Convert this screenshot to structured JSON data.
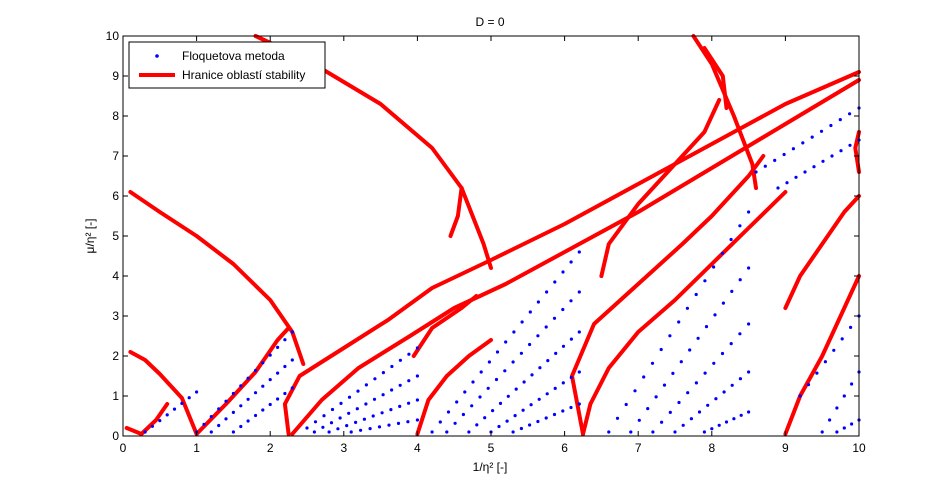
{
  "chart_data": {
    "type": "scatter",
    "title": "D = 0",
    "xlabel": "1/η² [-]",
    "ylabel": "μ/η² [-]",
    "xlim": [
      0,
      10
    ],
    "ylim": [
      0,
      10
    ],
    "xticks": [
      "0",
      "1",
      "2",
      "3",
      "4",
      "5",
      "6",
      "7",
      "8",
      "9",
      "10"
    ],
    "yticks": [
      "0",
      "1",
      "2",
      "3",
      "4",
      "5",
      "6",
      "7",
      "8",
      "9",
      "10"
    ],
    "grid": false,
    "legend_position": "top-left",
    "legend": [
      {
        "label": "Floquetova metoda",
        "marker": "point",
        "color": "#0000ff"
      },
      {
        "label": "Hranice oblastí stability",
        "marker": "thick-line",
        "color": "#ff0000"
      }
    ],
    "series": [
      {
        "name": "Hranice oblastí stability",
        "color": "#ff0000",
        "curves": [
          [
            [
              0.1,
              2.1
            ],
            [
              0.3,
              1.9
            ],
            [
              0.5,
              1.55
            ],
            [
              0.8,
              0.95
            ],
            [
              1.0,
              0.05
            ]
          ],
          [
            [
              0.05,
              0.2
            ],
            [
              0.25,
              0.05
            ],
            [
              0.45,
              0.4
            ],
            [
              0.6,
              0.8
            ]
          ],
          [
            [
              0.1,
              6.1
            ],
            [
              0.5,
              5.6
            ],
            [
              1.0,
              5.0
            ],
            [
              1.5,
              4.3
            ],
            [
              2.0,
              3.4
            ],
            [
              2.3,
              2.6
            ],
            [
              2.45,
              1.8
            ]
          ],
          [
            [
              1.0,
              0.05
            ],
            [
              1.4,
              0.8
            ],
            [
              1.8,
              1.6
            ],
            [
              2.1,
              2.4
            ],
            [
              2.25,
              2.7
            ]
          ],
          [
            [
              2.25,
              0.05
            ],
            [
              2.2,
              0.8
            ],
            [
              2.4,
              1.5
            ],
            [
              3.0,
              2.2
            ],
            [
              3.6,
              2.9
            ],
            [
              4.2,
              3.7
            ],
            [
              5.0,
              4.4
            ],
            [
              6.0,
              5.3
            ],
            [
              7.0,
              6.3
            ],
            [
              8.0,
              7.3
            ],
            [
              9.0,
              8.3
            ],
            [
              10.0,
              9.1
            ]
          ],
          [
            [
              1.8,
              10.0
            ],
            [
              2.5,
              9.4
            ],
            [
              3.5,
              8.3
            ],
            [
              4.2,
              7.2
            ],
            [
              4.6,
              6.2
            ],
            [
              4.9,
              4.8
            ],
            [
              5.0,
              4.2
            ]
          ],
          [
            [
              2.3,
              0.05
            ],
            [
              2.7,
              0.9
            ],
            [
              3.2,
              1.7
            ],
            [
              3.9,
              2.5
            ],
            [
              4.5,
              3.2
            ],
            [
              5.2,
              3.8
            ],
            [
              6.0,
              4.6
            ],
            [
              7.0,
              5.6
            ],
            [
              8.0,
              6.7
            ],
            [
              9.0,
              7.8
            ],
            [
              10.0,
              8.9
            ]
          ],
          [
            [
              4.0,
              0.05
            ],
            [
              4.15,
              0.9
            ],
            [
              4.4,
              1.5
            ],
            [
              4.7,
              2.0
            ],
            [
              5.0,
              2.4
            ]
          ],
          [
            [
              3.95,
              2.0
            ],
            [
              4.2,
              2.7
            ],
            [
              4.6,
              3.2
            ],
            [
              4.8,
              3.5
            ]
          ],
          [
            [
              4.45,
              5.0
            ],
            [
              4.55,
              5.5
            ],
            [
              4.6,
              6.2
            ]
          ],
          [
            [
              6.25,
              0.05
            ],
            [
              6.35,
              0.8
            ],
            [
              6.6,
              1.7
            ],
            [
              7.0,
              2.6
            ],
            [
              7.5,
              3.4
            ],
            [
              8.0,
              4.3
            ],
            [
              8.5,
              5.2
            ],
            [
              9.0,
              6.1
            ]
          ],
          [
            [
              6.25,
              0.05
            ],
            [
              6.1,
              1.5
            ],
            [
              6.4,
              2.8
            ],
            [
              7.0,
              3.8
            ],
            [
              7.6,
              4.8
            ],
            [
              8.0,
              5.5
            ],
            [
              8.5,
              6.5
            ],
            [
              8.7,
              7.0
            ]
          ],
          [
            [
              6.5,
              4.0
            ],
            [
              6.6,
              4.8
            ],
            [
              7.0,
              5.8
            ],
            [
              7.5,
              6.8
            ],
            [
              7.9,
              7.6
            ],
            [
              8.1,
              8.4
            ]
          ],
          [
            [
              7.75,
              10.0
            ],
            [
              8.0,
              9.3
            ],
            [
              8.3,
              8.0
            ],
            [
              8.55,
              6.8
            ],
            [
              8.6,
              6.2
            ]
          ],
          [
            [
              7.9,
              9.7
            ],
            [
              8.15,
              9.0
            ],
            [
              8.2,
              8.2
            ]
          ],
          [
            [
              9.0,
              0.05
            ],
            [
              9.2,
              1.0
            ],
            [
              9.5,
              2.0
            ],
            [
              9.8,
              3.2
            ],
            [
              10.0,
              4.0
            ]
          ],
          [
            [
              9.0,
              3.2
            ],
            [
              9.2,
              4.0
            ],
            [
              9.5,
              4.8
            ],
            [
              9.8,
              5.6
            ],
            [
              10.0,
              6.0
            ]
          ],
          [
            [
              10.0,
              6.6
            ],
            [
              9.95,
              7.2
            ],
            [
              10.0,
              7.6
            ]
          ]
        ]
      },
      {
        "name": "Floquetova metoda",
        "color": "#0000ff",
        "lines": [
          {
            "x0": 0.3,
            "x1": 1.0,
            "y0": 0.1,
            "y1": 1.1,
            "n": 8
          },
          {
            "x0": 1.0,
            "x1": 2.3,
            "y0": 0.1,
            "y1": 2.6,
            "n": 14
          },
          {
            "x0": 1.2,
            "x1": 2.3,
            "y0": 0.1,
            "y1": 1.9,
            "n": 12
          },
          {
            "x0": 1.5,
            "x1": 2.3,
            "y0": 0.1,
            "y1": 1.2,
            "n": 9
          },
          {
            "x0": 2.5,
            "x1": 4.0,
            "y0": 0.2,
            "y1": 2.2,
            "n": 14
          },
          {
            "x0": 2.6,
            "x1": 4.0,
            "y0": 0.1,
            "y1": 1.5,
            "n": 13
          },
          {
            "x0": 2.8,
            "x1": 4.0,
            "y0": 0.1,
            "y1": 0.9,
            "n": 11
          },
          {
            "x0": 3.1,
            "x1": 4.0,
            "y0": 0.1,
            "y1": 0.4,
            "n": 8
          },
          {
            "x0": 4.2,
            "x1": 6.2,
            "y0": 0.1,
            "y1": 4.6,
            "n": 19
          },
          {
            "x0": 4.4,
            "x1": 6.2,
            "y0": 0.1,
            "y1": 3.6,
            "n": 17
          },
          {
            "x0": 4.7,
            "x1": 6.2,
            "y0": 0.1,
            "y1": 2.6,
            "n": 15
          },
          {
            "x0": 5.0,
            "x1": 6.2,
            "y0": 0.1,
            "y1": 1.6,
            "n": 12
          },
          {
            "x0": 5.3,
            "x1": 6.2,
            "y0": 0.1,
            "y1": 0.8,
            "n": 9
          },
          {
            "x0": 6.6,
            "x1": 8.5,
            "y0": 0.1,
            "y1": 5.6,
            "n": 17
          },
          {
            "x0": 6.9,
            "x1": 8.5,
            "y0": 0.1,
            "y1": 4.2,
            "n": 15
          },
          {
            "x0": 7.2,
            "x1": 8.5,
            "y0": 0.1,
            "y1": 2.8,
            "n": 12
          },
          {
            "x0": 7.5,
            "x1": 8.5,
            "y0": 0.1,
            "y1": 1.6,
            "n": 10
          },
          {
            "x0": 7.9,
            "x1": 8.5,
            "y0": 0.1,
            "y1": 0.6,
            "n": 7
          },
          {
            "x0": 8.6,
            "x1": 10.0,
            "y0": 6.6,
            "y1": 8.2,
            "n": 12
          },
          {
            "x0": 8.9,
            "x1": 10.0,
            "y0": 6.2,
            "y1": 7.4,
            "n": 10
          },
          {
            "x0": 9.2,
            "x1": 10.0,
            "y0": 1.0,
            "y1": 3.0,
            "n": 8
          },
          {
            "x0": 9.5,
            "x1": 10.0,
            "y0": 0.1,
            "y1": 1.6,
            "n": 6
          },
          {
            "x0": 9.7,
            "x1": 10.0,
            "y0": 0.1,
            "y1": 0.4,
            "n": 4
          }
        ]
      }
    ]
  }
}
